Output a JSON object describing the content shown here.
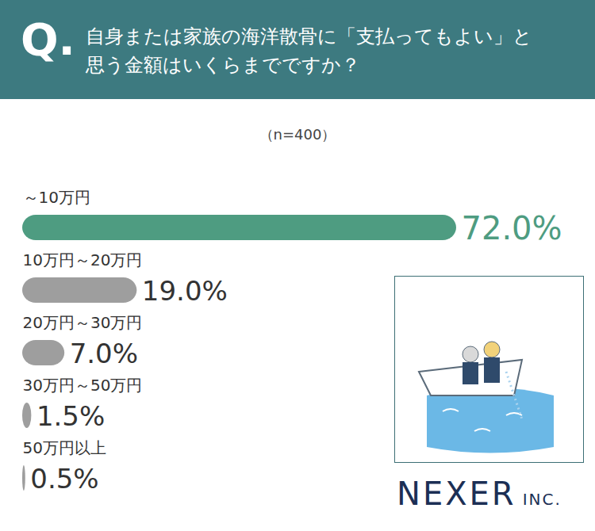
{
  "chart_data": {
    "type": "bar",
    "orientation": "horizontal",
    "q_label": "Q.",
    "title": "自身または家族の海洋散骨に「支払ってもよい」と思う金額はいくらまでですか？",
    "subtitle": "（n=400）",
    "categories": [
      "～10万円",
      "10万円～20万円",
      "20万円～30万円",
      "30万円～50万円",
      "50万円以上"
    ],
    "values": [
      72,
      19,
      7,
      1.5,
      0.5
    ],
    "value_labels": [
      "72.0%",
      "19.0%",
      "7.0%",
      "1.5%",
      "0.5%"
    ],
    "colors": [
      "#4e9c81",
      "#9e9e9e",
      "#9e9e9e",
      "#9e9e9e",
      "#9e9e9e"
    ],
    "data_labels": true,
    "tick_labels": false,
    "grid": false,
    "source": "NEXER INC."
  }
}
